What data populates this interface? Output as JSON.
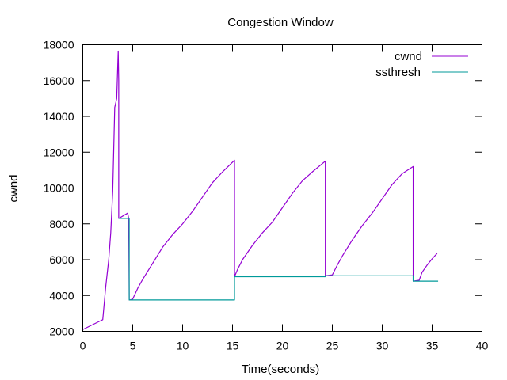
{
  "chart_data": {
    "type": "line",
    "title": "Congestion Window",
    "xlabel": "Time(seconds)",
    "ylabel": "cwnd",
    "xlim": [
      0,
      40
    ],
    "ylim": [
      2000,
      18000
    ],
    "xticks": [
      0,
      5,
      10,
      15,
      20,
      25,
      30,
      35,
      40
    ],
    "yticks": [
      2000,
      4000,
      6000,
      8000,
      10000,
      12000,
      14000,
      16000,
      18000
    ],
    "legend_position": "top-right",
    "grid": false,
    "series": [
      {
        "name": "cwnd",
        "color": "#9400d3",
        "x": [
          0,
          2.0,
          2.3,
          2.6,
          2.8,
          3.0,
          3.2,
          3.4,
          3.55,
          3.6,
          3.6,
          4.5,
          4.6,
          4.65,
          4.7,
          5.0,
          5.5,
          6,
          7,
          8,
          9,
          10,
          11,
          12,
          13,
          14,
          15.2,
          15.2,
          15.5,
          16,
          17,
          18,
          19,
          20,
          21,
          22,
          23,
          24.3,
          24.3,
          25.0,
          25.5,
          26,
          27,
          28,
          29,
          30,
          31,
          32,
          33.1,
          33.1,
          33.7,
          34.0,
          34.5,
          35,
          35.5
        ],
        "y": [
          2100,
          2650,
          4500,
          6000,
          7500,
          9800,
          14500,
          15000,
          17650,
          16000,
          8300,
          8600,
          8300,
          3750,
          3750,
          3800,
          4400,
          4900,
          5800,
          6700,
          7400,
          8000,
          8700,
          9500,
          10300,
          10900,
          11550,
          5050,
          5450,
          6000,
          6800,
          7500,
          8100,
          8900,
          9700,
          10400,
          10900,
          11500,
          5100,
          5150,
          5700,
          6200,
          7100,
          7900,
          8600,
          9400,
          10200,
          10800,
          11200,
          4800,
          4850,
          5300,
          5700,
          6050,
          6350
        ]
      },
      {
        "name": "ssthresh",
        "color": "#009a9a",
        "x": [
          3.6,
          4.65,
          4.65,
          15.2,
          15.2,
          24.3,
          24.3,
          33.1,
          33.1,
          35.6
        ],
        "y": [
          8300,
          8300,
          3750,
          3750,
          5050,
          5050,
          5100,
          5100,
          4800,
          4800
        ]
      }
    ]
  }
}
